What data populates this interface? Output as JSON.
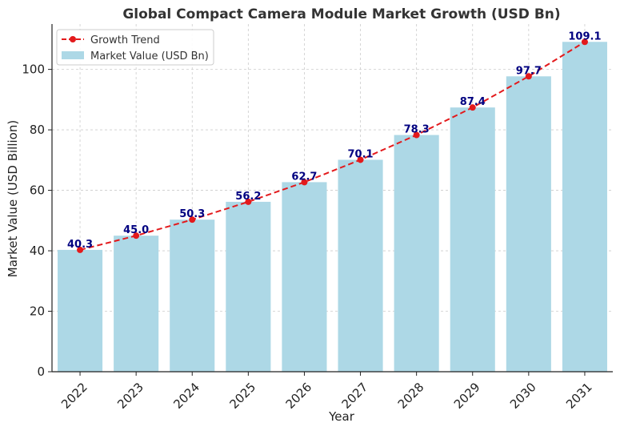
{
  "chart_data": {
    "type": "bar",
    "title": "Global Compact Camera Module Market Growth (USD Bn)",
    "xlabel": "Year",
    "ylabel": "Market Value (USD Billion)",
    "categories": [
      "2022",
      "2023",
      "2024",
      "2025",
      "2026",
      "2027",
      "2028",
      "2029",
      "2030",
      "2031"
    ],
    "series": [
      {
        "name": "Market Value (USD Bn)",
        "kind": "bar",
        "color": "#add8e6",
        "values": [
          40.3,
          45.0,
          50.3,
          56.2,
          62.7,
          70.1,
          78.3,
          87.4,
          97.7,
          109.1
        ]
      },
      {
        "name": "Growth Trend",
        "kind": "line",
        "style": "dashed",
        "marker": "circle",
        "color": "#e31a1c",
        "values": [
          40.3,
          45.0,
          50.3,
          56.2,
          62.7,
          70.1,
          78.3,
          87.4,
          97.7,
          109.1
        ]
      }
    ],
    "data_labels": [
      "40.3",
      "45.0",
      "50.3",
      "56.2",
      "62.7",
      "70.1",
      "78.3",
      "87.4",
      "97.7",
      "109.1"
    ],
    "data_label_color": "#000080",
    "ylim": [
      0,
      115
    ],
    "yticks": [
      0,
      20,
      40,
      60,
      80,
      100
    ],
    "grid": true,
    "legend_position": "top-left",
    "legend_order": [
      "Growth Trend",
      "Market Value (USD Bn)"
    ]
  }
}
